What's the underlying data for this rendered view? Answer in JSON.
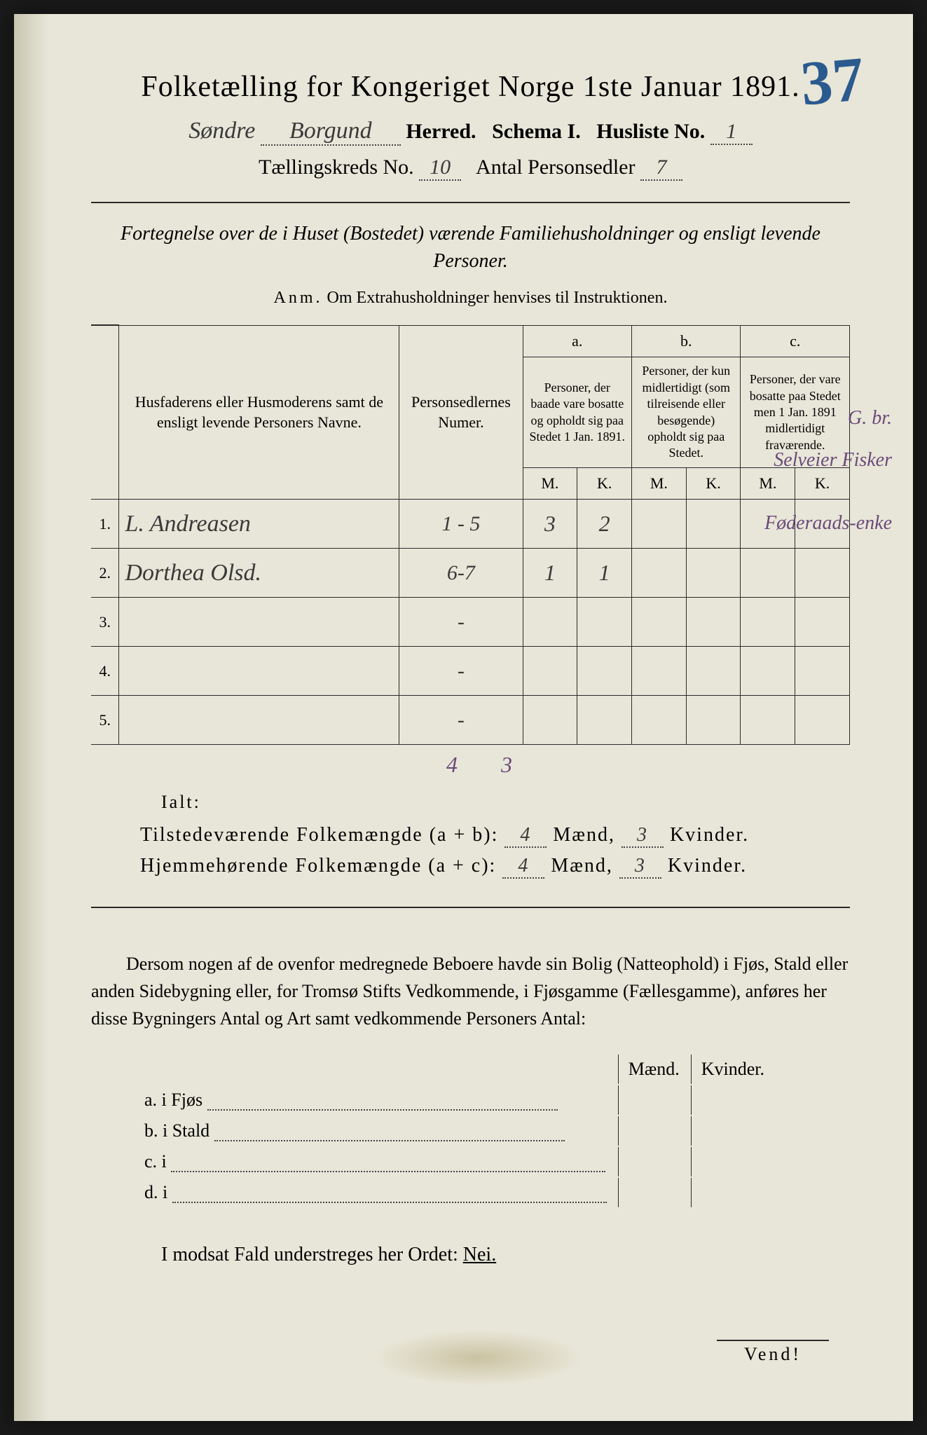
{
  "page_number_annotation": "37",
  "title": "Folketælling for Kongeriget Norge 1ste Januar 1891.",
  "header": {
    "herred_prefix": "Søndre",
    "herred_value": "Borgund",
    "herred_label": "Herred.",
    "schema_label": "Schema I.",
    "husliste_label": "Husliste No.",
    "husliste_value": "1",
    "kreds_label": "Tællingskreds No.",
    "kreds_value": "10",
    "antal_label": "Antal Personsedler",
    "antal_value": "7"
  },
  "subtitle": "Fortegnelse over de i Huset (Bostedet) værende Familiehusholdninger og ensligt levende Personer.",
  "anm": {
    "lead": "Anm.",
    "text": "Om Extrahusholdninger henvises til Instruktionen."
  },
  "columns": {
    "names": "Husfaderens eller Husmoderens samt de ensligt levende Personers Navne.",
    "sedler": "Personsedlernes Numer.",
    "a_label": "a.",
    "a_text": "Personer, der baade vare bosatte og opholdt sig paa Stedet 1 Jan. 1891.",
    "b_label": "b.",
    "b_text": "Personer, der kun midlertidigt (som tilreisende eller besøgende) opholdt sig paa Stedet.",
    "c_label": "c.",
    "c_text": "Personer, der vare bosatte paa Stedet men 1 Jan. 1891 midlertidigt fraværende.",
    "m": "M.",
    "k": "K."
  },
  "margin_header": "G. br.",
  "rows": [
    {
      "n": "1.",
      "name": "L. Andreasen",
      "sedler": "1 - 5",
      "am": "3",
      "ak": "2",
      "note": "Selveier Fisker"
    },
    {
      "n": "2.",
      "name": "Dorthea Olsd.",
      "sedler": "6-7",
      "am": "1",
      "ak": "1",
      "note": "Føderaads-enke"
    },
    {
      "n": "3.",
      "name": "",
      "sedler": "-",
      "am": "",
      "ak": "",
      "note": ""
    },
    {
      "n": "4.",
      "name": "",
      "sedler": "-",
      "am": "",
      "ak": "",
      "note": ""
    },
    {
      "n": "5.",
      "name": "",
      "sedler": "-",
      "am": "",
      "ak": "",
      "note": ""
    }
  ],
  "col_totals": {
    "am": "4",
    "ak": "3"
  },
  "ialt_label": "Ialt:",
  "summary": {
    "line1_label": "Tilstedeværende Folkemængde (a + b):",
    "line1_m": "4",
    "line1_k": "3",
    "line2_label": "Hjemmehørende Folkemængde (a + c):",
    "line2_m": "4",
    "line2_k": "3",
    "maend": "Mænd,",
    "kvinder": "Kvinder."
  },
  "para": "Dersom nogen af de ovenfor medregnede Beboere havde sin Bolig (Natteophold) i Fjøs, Stald eller anden Sidebygning eller, for Tromsø Stifts Vedkommende, i Fjøsgamme (Fællesgamme), anføres her disse Bygningers Antal og Art samt vedkommende Personers Antal:",
  "sub": {
    "maend": "Mænd.",
    "kvinder": "Kvinder.",
    "a": "a.  i      Fjøs",
    "b": "b.  i      Stald",
    "c": "c.  i",
    "d": "d.  i"
  },
  "nei_line": "I modsat Fald understreges her Ordet:",
  "nei": "Nei.",
  "vend": "Vend!",
  "colors": {
    "paper": "#e8e6d8",
    "ink": "#2a2a2a",
    "blue_pencil": "#2b5a8f",
    "purple_ink": "#6b4a7a"
  }
}
